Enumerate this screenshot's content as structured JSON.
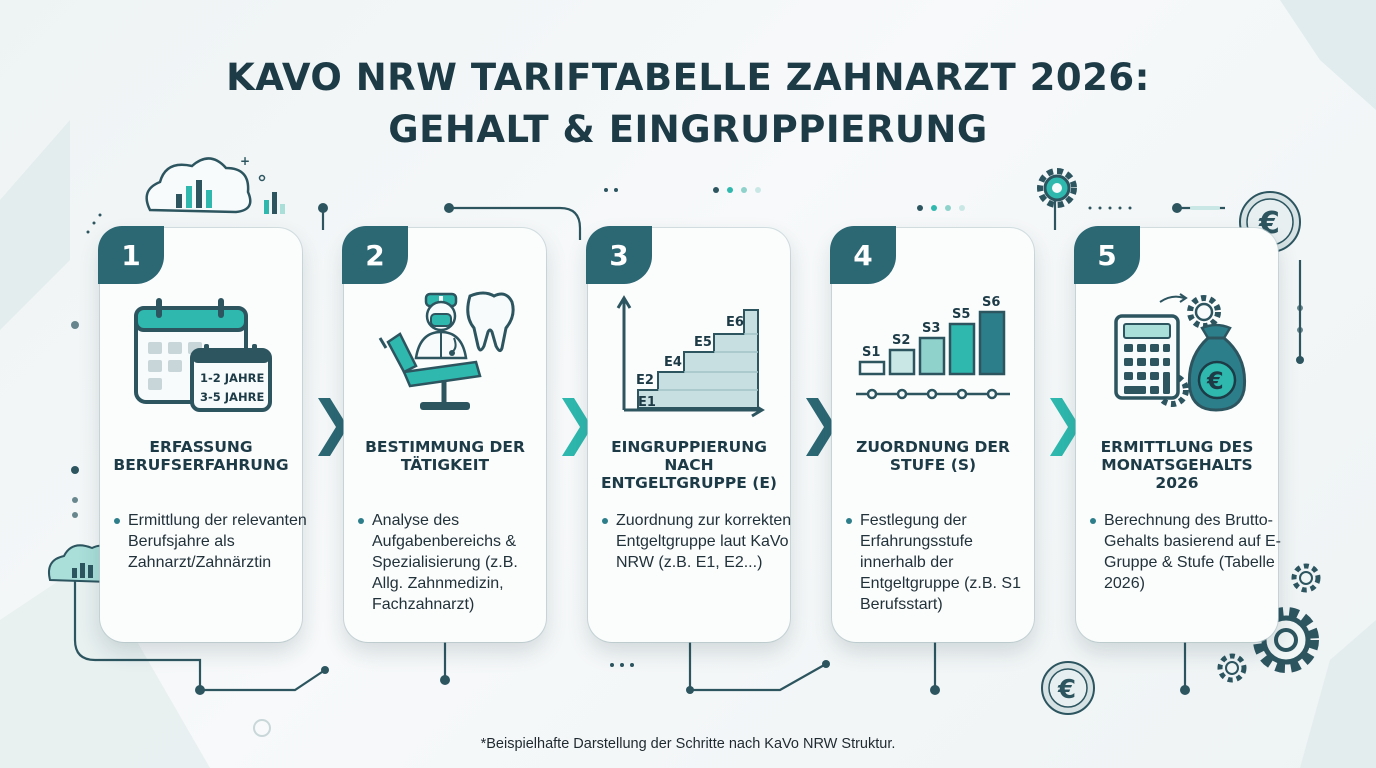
{
  "title": {
    "line1": "KAVO NRW TARIFTABELLE ZAHNARZT 2026:",
    "line2": "GEHALT & EINGRUPPIERUNG"
  },
  "steps": [
    {
      "number": "1",
      "icon": "calendar-icon",
      "icon_labels": [
        "1-2 JAHRE",
        "3-5 JAHRE"
      ],
      "title": "ERFASSUNG BERUFSERFAHRUNG",
      "bullet": "Ermittlung der relevanten Berufsjahre als Zahnarzt/Zahnärztin"
    },
    {
      "number": "2",
      "icon": "dentist-chair-icon",
      "title": "BESTIMMUNG DER TÄTIGKEIT",
      "bullet": "Analyse des Aufgabenbereichs & Spezialisierung (z.B. Allg. Zahnmedizin, Fachzahnarzt)"
    },
    {
      "number": "3",
      "icon": "staircase-chart-icon",
      "icon_labels": [
        "E1",
        "E2",
        "E4",
        "E5",
        "E6"
      ],
      "title": "EINGRUPPIERUNG NACH ENTGELTGRUPPE (E)",
      "bullet": "Zuordnung zur korrekten Entgeltgruppe laut KaVo NRW (z.B. E1, E2...)"
    },
    {
      "number": "4",
      "icon": "bar-steps-icon",
      "icon_labels": [
        "S1",
        "S2",
        "S3",
        "S5",
        "S6"
      ],
      "title": "ZUORDNUNG DER STUFE (S)",
      "bullet": "Festlegung der Erfahrungsstufe innerhalb der Entgeltgruppe (z.B. S1 Berufsstart)"
    },
    {
      "number": "5",
      "icon": "calculator-money-icon",
      "title": "ERMITTLUNG DES MONATSGEHALTS 2026",
      "bullet": "Berechnung des Brutto-Gehalts basierend auf E-Gruppe & Stufe (Tabelle 2026)"
    }
  ],
  "footnote": "*Beispielhafte Darstellung der Schritte nach KaVo NRW Struktur.",
  "colors": {
    "teal_dark": "#2c6774",
    "teal": "#2eb8ae",
    "teal_light": "#a9ded9",
    "navy": "#1d3b47"
  }
}
